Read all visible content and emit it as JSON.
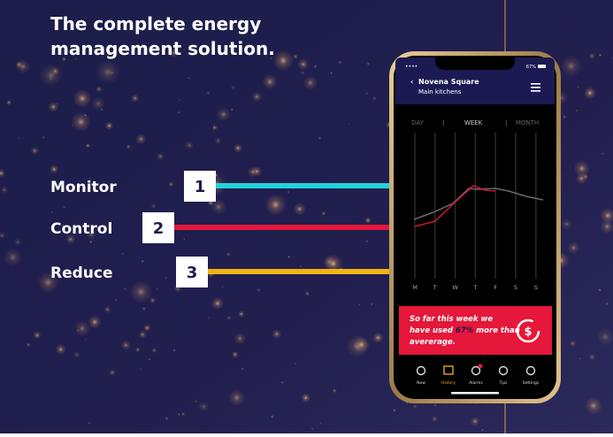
{
  "headline": {
    "line1": "The complete energy",
    "line2": "management solution."
  },
  "steps": [
    {
      "number": "1",
      "label": "Monitor"
    },
    {
      "number": "2",
      "label": "Control"
    },
    {
      "number": "3",
      "label": "Reduce"
    }
  ],
  "phone": {
    "battery": "67%",
    "location": "Novena Square",
    "sublocation": "Main kitchens",
    "tabs": [
      "DAY",
      "WEEK",
      "MONTH"
    ],
    "days": [
      "M",
      "T",
      "W",
      "T",
      "F",
      "S",
      "S"
    ],
    "banner": {
      "before": "So far this week we have used ",
      "highlight": "67%",
      "after": " more than avererage."
    },
    "nav": [
      "New",
      "History",
      "Alarms",
      "Tips",
      "Settings"
    ]
  }
}
